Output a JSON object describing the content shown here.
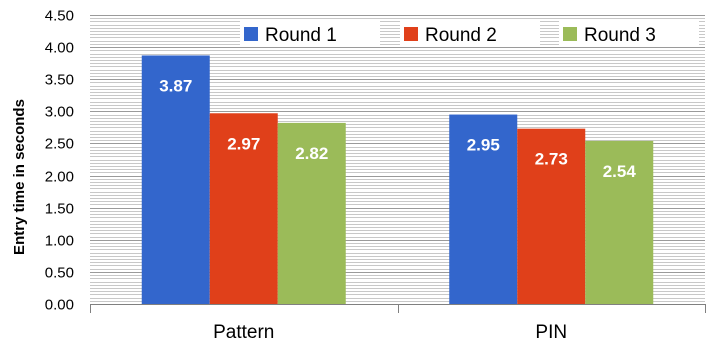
{
  "chart_data": {
    "type": "bar",
    "title": "",
    "xlabel": "",
    "ylabel": "Entry time in seconds",
    "categories": [
      "Pattern",
      "PIN"
    ],
    "series": [
      {
        "name": "Round 1",
        "values": [
          3.87,
          2.95
        ],
        "color": "#3366CC"
      },
      {
        "name": "Round 2",
        "values": [
          2.97,
          2.73
        ],
        "color": "#E0401A"
      },
      {
        "name": "Round 3",
        "values": [
          2.82,
          2.54
        ],
        "color": "#9BBB59"
      }
    ],
    "ylim": [
      0,
      4.5
    ],
    "yticks": [
      "0.00",
      "0.50",
      "1.00",
      "1.50",
      "2.00",
      "2.50",
      "3.00",
      "3.50",
      "4.00",
      "4.50"
    ],
    "data_labels": [
      [
        "3.87",
        "2.95"
      ],
      [
        "2.97",
        "2.73"
      ],
      [
        "2.82",
        "2.54"
      ]
    ],
    "grid": true,
    "legend_position": "top-right"
  }
}
